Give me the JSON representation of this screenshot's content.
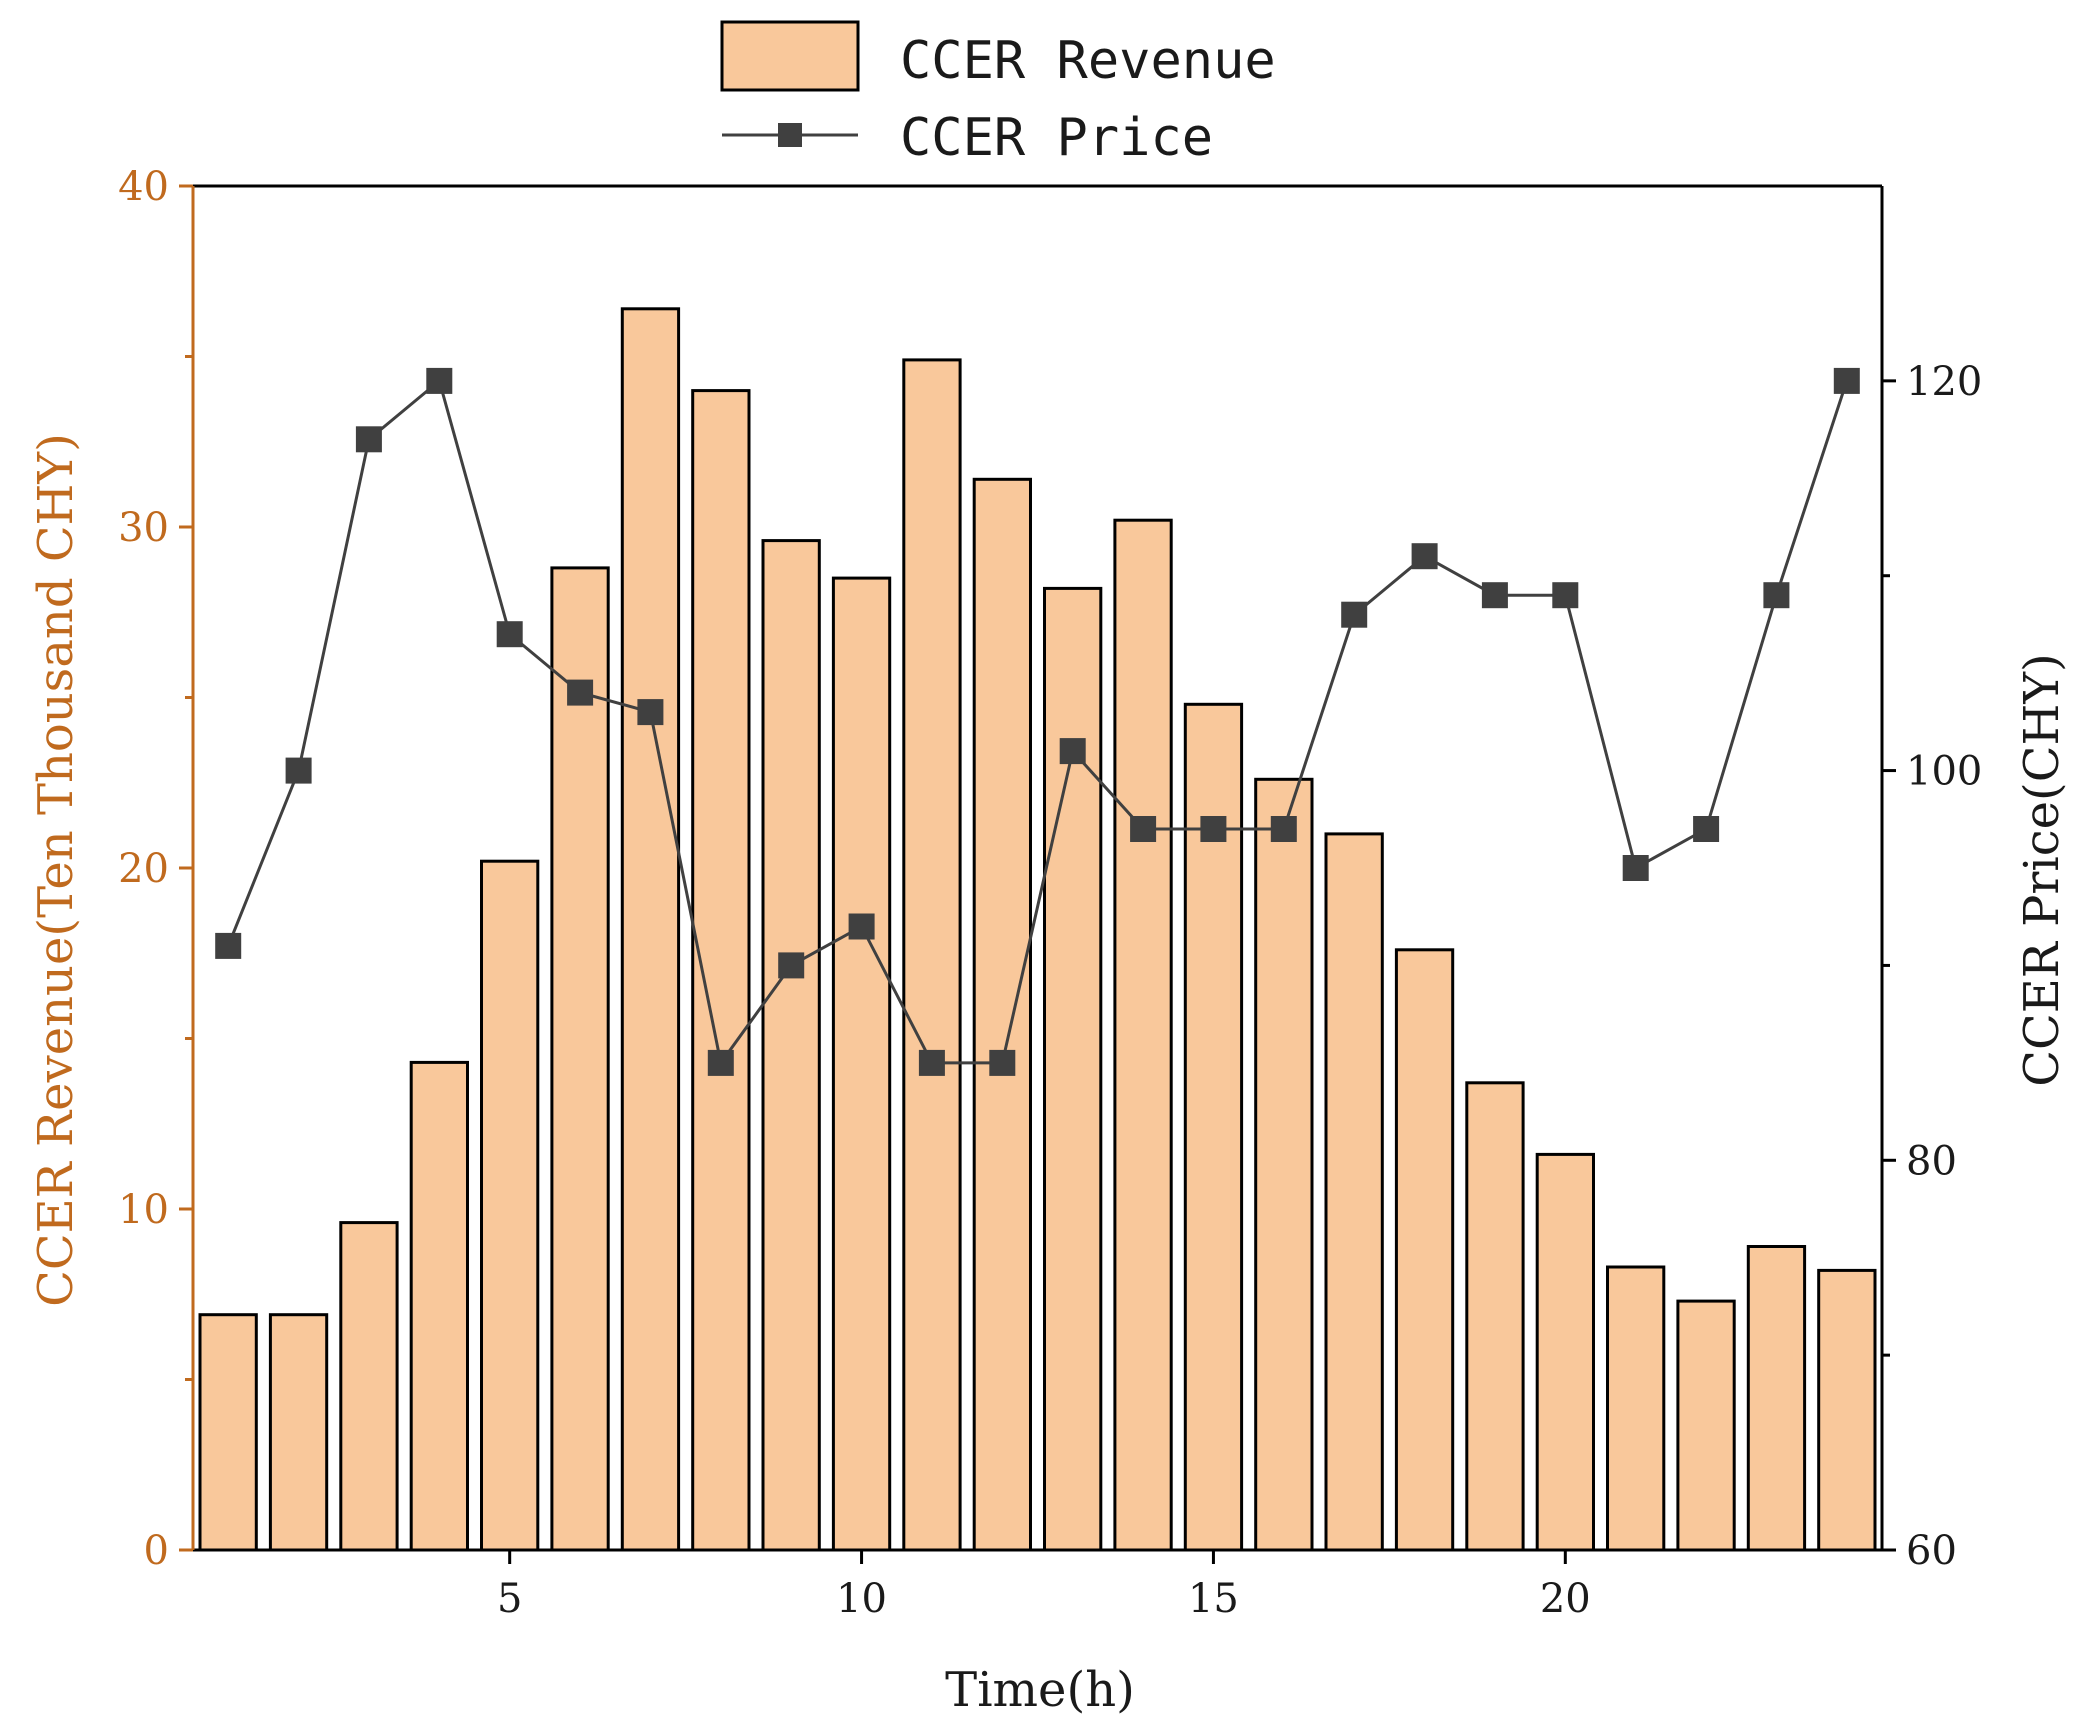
{
  "chart_data": {
    "type": "bar+line",
    "title": "",
    "xlabel": "Time(h)",
    "ylabel_left": "CCER Revenue(Ten Thousand CHY)",
    "ylabel_right": "CCER Price(CHY)",
    "x": [
      1,
      2,
      3,
      4,
      5,
      6,
      7,
      8,
      9,
      10,
      11,
      12,
      13,
      14,
      15,
      16,
      17,
      18,
      19,
      20,
      21,
      22,
      23,
      24
    ],
    "xlim": [
      0.5,
      24.5
    ],
    "x_ticks": [
      5,
      10,
      15,
      20
    ],
    "ylim_left": [
      0,
      40
    ],
    "y_ticks_left": [
      0,
      10,
      20,
      30,
      40
    ],
    "ylim_right": [
      60,
      130
    ],
    "y_ticks_right": [
      60,
      80,
      100,
      120
    ],
    "series": [
      {
        "name": "CCER Revenue",
        "kind": "bar",
        "axis": "left",
        "values": [
          6.9,
          6.9,
          9.6,
          14.3,
          20.2,
          28.8,
          36.4,
          34.0,
          29.6,
          28.5,
          34.9,
          31.4,
          28.2,
          30.2,
          24.8,
          22.6,
          21.0,
          17.6,
          13.7,
          11.6,
          8.3,
          7.3,
          8.9,
          8.2
        ],
        "color": "#F9C89B",
        "edge_color": "#000000"
      },
      {
        "name": "CCER Price",
        "kind": "line",
        "axis": "right",
        "marker": "square",
        "values": [
          91,
          100,
          117,
          120,
          107,
          104,
          103,
          85,
          90,
          92,
          85,
          85,
          101,
          97,
          97,
          97,
          108,
          111,
          109,
          109,
          95,
          97,
          109,
          120
        ],
        "color": "#404040"
      }
    ],
    "left_axis_color": "#C06A1E",
    "right_axis_color": "#000000",
    "legend_position": "top-center",
    "grid": false
  }
}
